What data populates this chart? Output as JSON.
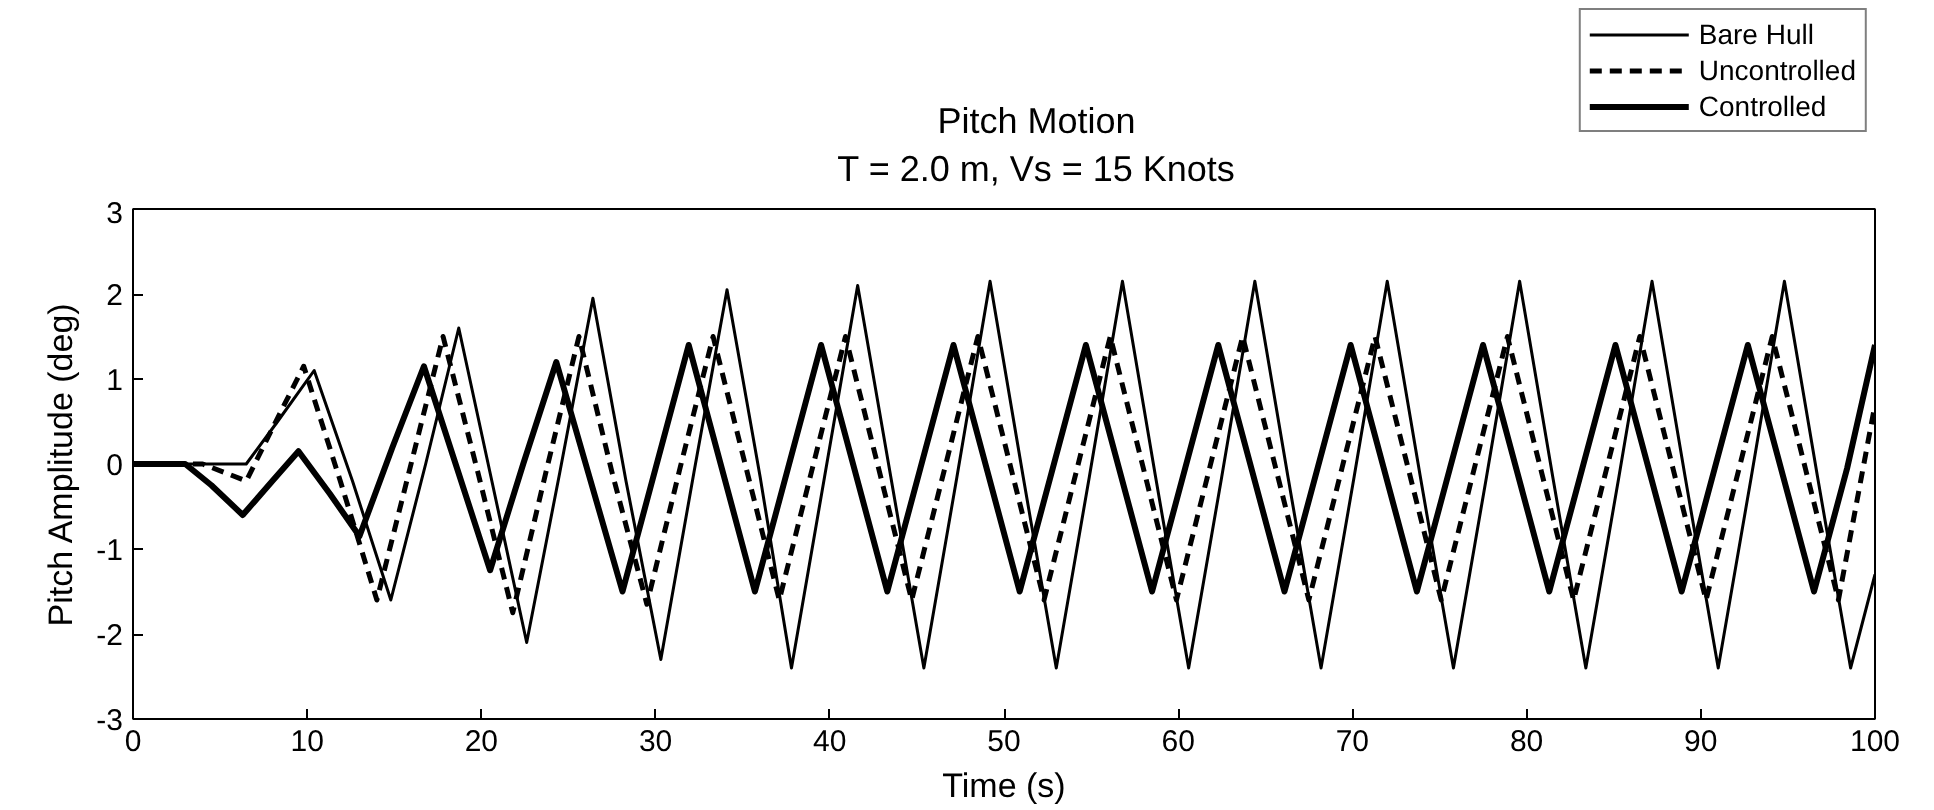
{
  "chart_data": {
    "type": "line",
    "title": "Pitch Motion",
    "subtitle": "T = 2.0 m, Vs = 15 Knots",
    "xlabel": "Time (s)",
    "ylabel": "Pitch Amplitude (deg)",
    "xlim": [
      0,
      100
    ],
    "ylim": [
      -3,
      3
    ],
    "xticks": [
      0,
      10,
      20,
      30,
      40,
      50,
      60,
      70,
      80,
      90,
      100
    ],
    "yticks": [
      -3,
      -2,
      -1,
      0,
      1,
      2,
      3
    ],
    "grid": false,
    "legend": "top right",
    "marker": "none",
    "series": [
      {
        "name": "Bare Hull",
        "color": "#000000",
        "line_style": "solid",
        "x": [
          0,
          6.5,
          8.3,
          10.4,
          12.6,
          14.8,
          16.8,
          18.7,
          20.6,
          22.6,
          24.5,
          26.4,
          28.3,
          30.3,
          32.2,
          34.1,
          36,
          37.8,
          39.7,
          41.6,
          43.5,
          45.4,
          47.3,
          49.2,
          51.1,
          53.0,
          54.9,
          56.8,
          58.7,
          60.6,
          62.5,
          64.4,
          66.3,
          68.2,
          70.1,
          72.0,
          73.9,
          75.8,
          77.7,
          79.6,
          81.5,
          83.4,
          85.3,
          87.2,
          89.1,
          91.0,
          92.9,
          94.8,
          96.7,
          98.6,
          100
        ],
        "values": [
          0,
          0,
          0.5,
          1.1,
          -0.2,
          -1.6,
          0,
          1.6,
          -0.2,
          -2.1,
          -0.1,
          1.95,
          -0.2,
          -2.3,
          -0.1,
          2.05,
          -0.15,
          -2.4,
          -0.15,
          2.1,
          -0.15,
          -2.4,
          -0.15,
          2.15,
          -0.15,
          -2.4,
          -0.15,
          2.15,
          -0.15,
          -2.4,
          -0.15,
          2.15,
          -0.15,
          -2.4,
          -0.15,
          2.15,
          -0.15,
          -2.4,
          -0.15,
          2.15,
          -0.15,
          -2.4,
          -0.15,
          2.15,
          -0.15,
          -2.4,
          -0.15,
          2.15,
          -0.15,
          -2.4,
          -1.3
        ]
      },
      {
        "name": "Uncontrolled",
        "color": "#000000",
        "line_style": "dashed",
        "x": [
          0,
          4,
          6.5,
          8.2,
          9.8,
          11.9,
          14,
          15.9,
          17.8,
          19.8,
          21.8,
          23.7,
          25.6,
          27.5,
          29.5,
          31.4,
          33.3,
          35.2,
          37.1,
          39.0,
          40.9,
          42.8,
          44.7,
          46.6,
          48.5,
          50.4,
          52.3,
          54.2,
          56.1,
          58.0,
          59.9,
          61.8,
          63.7,
          65.6,
          67.5,
          69.4,
          71.3,
          73.2,
          75.1,
          77.0,
          78.9,
          80.8,
          82.7,
          84.6,
          86.5,
          88.4,
          90.3,
          92.2,
          94.1,
          96.0,
          97.9,
          100
        ],
        "values": [
          0,
          0,
          -0.2,
          0.5,
          1.15,
          -0.2,
          -1.6,
          -0.05,
          1.5,
          -0.1,
          -1.75,
          -0.1,
          1.5,
          -0.1,
          -1.65,
          -0.05,
          1.5,
          -0.05,
          -1.6,
          -0.05,
          1.5,
          -0.05,
          -1.6,
          -0.05,
          1.5,
          -0.05,
          -1.6,
          -0.05,
          1.5,
          -0.05,
          -1.6,
          -0.05,
          1.5,
          -0.05,
          -1.6,
          -0.05,
          1.5,
          -0.05,
          -1.6,
          -0.05,
          1.5,
          -0.05,
          -1.6,
          -0.05,
          1.5,
          -0.05,
          -1.6,
          -0.05,
          1.5,
          -0.05,
          -1.6,
          0.7
        ]
      },
      {
        "name": "Controlled",
        "color": "#000000",
        "line_style": "solid",
        "x": [
          0,
          3,
          4.5,
          6.3,
          8,
          9.5,
          11.3,
          13,
          14.9,
          16.7,
          18.6,
          20.5,
          22.4,
          24.3,
          26.2,
          28.1,
          30,
          31.9,
          33.8,
          35.7,
          37.6,
          39.5,
          41.4,
          43.3,
          45.2,
          47.1,
          49.0,
          50.9,
          52.8,
          54.7,
          56.6,
          58.5,
          60.4,
          62.3,
          64.2,
          66.1,
          68.0,
          69.9,
          71.8,
          73.7,
          75.6,
          77.5,
          79.4,
          81.3,
          83.2,
          85.1,
          87.0,
          88.9,
          90.8,
          92.7,
          94.6,
          96.5,
          98.4,
          100
        ],
        "values": [
          0,
          0,
          -0.25,
          -0.6,
          -0.2,
          0.15,
          -0.35,
          -0.85,
          0.2,
          1.15,
          -0.05,
          -1.25,
          0,
          1.2,
          -0.15,
          -1.5,
          -0.05,
          1.4,
          -0.05,
          -1.5,
          -0.05,
          1.4,
          -0.05,
          -1.5,
          -0.05,
          1.4,
          -0.05,
          -1.5,
          -0.05,
          1.4,
          -0.05,
          -1.5,
          -0.05,
          1.4,
          -0.05,
          -1.5,
          -0.05,
          1.4,
          -0.05,
          -1.5,
          -0.05,
          1.4,
          -0.05,
          -1.5,
          -0.05,
          1.4,
          -0.05,
          -1.5,
          -0.05,
          1.4,
          -0.05,
          -1.5,
          -0.05,
          1.4
        ]
      }
    ]
  }
}
